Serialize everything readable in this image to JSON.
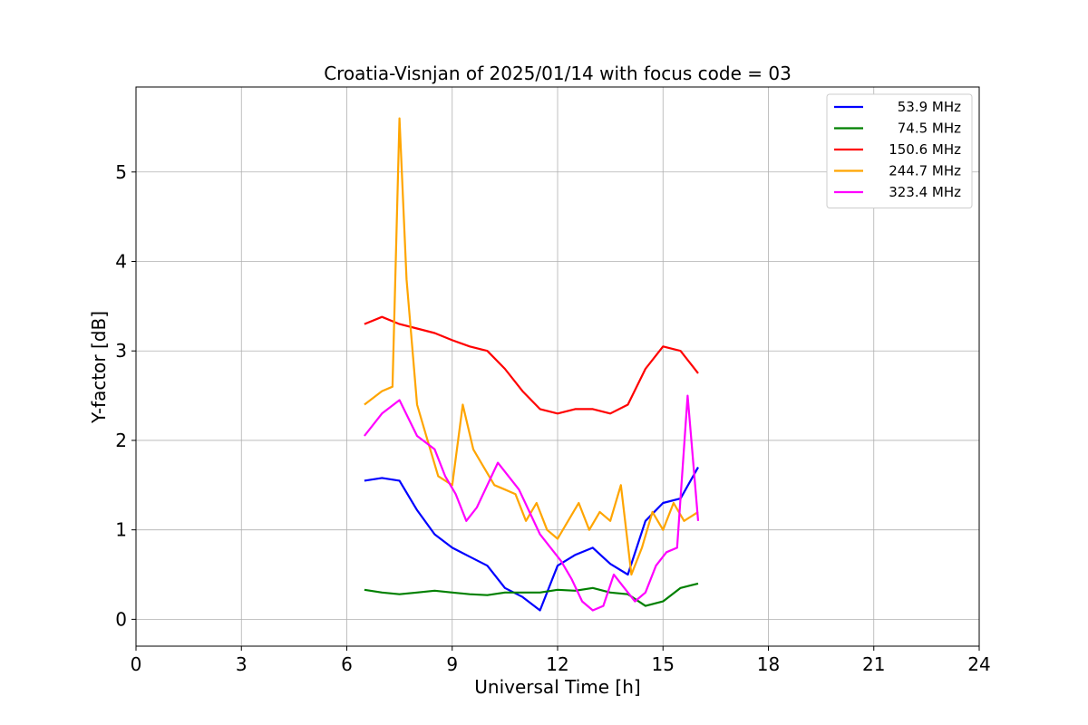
{
  "chart_data": {
    "type": "line",
    "title": "Croatia-Visnjan of 2025/01/14 with focus code = 03",
    "xlabel": "Universal Time [h]",
    "ylabel": "Y-factor [dB]",
    "xlim": [
      0,
      24
    ],
    "ylim": [
      -0.3,
      5.95
    ],
    "xticks": [
      0,
      3,
      6,
      9,
      12,
      15,
      18,
      21,
      24
    ],
    "yticks": [
      0,
      1,
      2,
      3,
      4,
      5
    ],
    "grid": true,
    "legend_position": "top-right",
    "series": [
      {
        "name": "53.9 MHz",
        "color": "#0000ff",
        "x": [
          6.5,
          7.0,
          7.5,
          8.0,
          8.5,
          9.0,
          9.5,
          10.0,
          10.5,
          11.0,
          11.5,
          12.0,
          12.5,
          13.0,
          13.5,
          14.0,
          14.5,
          15.0,
          15.5,
          16.0
        ],
        "y": [
          1.55,
          1.58,
          1.55,
          1.22,
          0.95,
          0.8,
          0.7,
          0.6,
          0.35,
          0.25,
          0.1,
          0.6,
          0.72,
          0.8,
          0.62,
          0.5,
          1.1,
          1.3,
          1.35,
          1.7
        ]
      },
      {
        "name": "74.5 MHz",
        "color": "#008000",
        "x": [
          6.5,
          7.0,
          7.5,
          8.0,
          8.5,
          9.0,
          9.5,
          10.0,
          10.5,
          11.0,
          11.5,
          12.0,
          12.5,
          13.0,
          13.5,
          14.0,
          14.5,
          15.0,
          15.5,
          16.0
        ],
        "y": [
          0.33,
          0.3,
          0.28,
          0.3,
          0.32,
          0.3,
          0.28,
          0.27,
          0.3,
          0.3,
          0.3,
          0.33,
          0.32,
          0.35,
          0.3,
          0.28,
          0.15,
          0.2,
          0.35,
          0.4
        ]
      },
      {
        "name": "150.6 MHz",
        "color": "#ff0000",
        "x": [
          6.5,
          7.0,
          7.5,
          8.0,
          8.5,
          9.0,
          9.5,
          10.0,
          10.5,
          11.0,
          11.5,
          12.0,
          12.5,
          13.0,
          13.5,
          14.0,
          14.5,
          15.0,
          15.5,
          16.0
        ],
        "y": [
          3.3,
          3.38,
          3.3,
          3.25,
          3.2,
          3.12,
          3.05,
          3.0,
          2.8,
          2.55,
          2.35,
          2.3,
          2.35,
          2.35,
          2.3,
          2.4,
          2.8,
          3.05,
          3.0,
          2.75
        ]
      },
      {
        "name": "244.7 MHz",
        "color": "#ffa500",
        "x": [
          6.5,
          7.0,
          7.3,
          7.5,
          7.7,
          8.0,
          8.3,
          8.6,
          9.0,
          9.3,
          9.6,
          9.9,
          10.2,
          10.5,
          10.8,
          11.1,
          11.4,
          11.7,
          12.0,
          12.3,
          12.6,
          12.9,
          13.2,
          13.5,
          13.8,
          14.1,
          14.4,
          14.7,
          15.0,
          15.3,
          15.6,
          16.0
        ],
        "y": [
          2.4,
          2.55,
          2.6,
          5.6,
          3.8,
          2.4,
          2.0,
          1.6,
          1.5,
          2.4,
          1.9,
          1.7,
          1.5,
          1.45,
          1.4,
          1.1,
          1.3,
          1.0,
          0.9,
          1.1,
          1.3,
          1.0,
          1.2,
          1.1,
          1.5,
          0.5,
          0.8,
          1.2,
          1.0,
          1.3,
          1.1,
          1.2
        ]
      },
      {
        "name": "323.4 MHz",
        "color": "#ff00ff",
        "x": [
          6.5,
          7.0,
          7.5,
          8.0,
          8.5,
          8.8,
          9.1,
          9.4,
          9.7,
          10.0,
          10.3,
          10.6,
          10.9,
          11.2,
          11.5,
          11.8,
          12.1,
          12.4,
          12.7,
          13.0,
          13.3,
          13.6,
          13.9,
          14.2,
          14.5,
          14.8,
          15.1,
          15.4,
          15.7,
          16.0
        ],
        "y": [
          2.05,
          2.3,
          2.45,
          2.05,
          1.9,
          1.6,
          1.4,
          1.1,
          1.25,
          1.5,
          1.75,
          1.6,
          1.45,
          1.2,
          0.95,
          0.8,
          0.65,
          0.45,
          0.2,
          0.1,
          0.15,
          0.5,
          0.35,
          0.2,
          0.3,
          0.6,
          0.75,
          0.8,
          2.5,
          1.1
        ]
      }
    ]
  }
}
